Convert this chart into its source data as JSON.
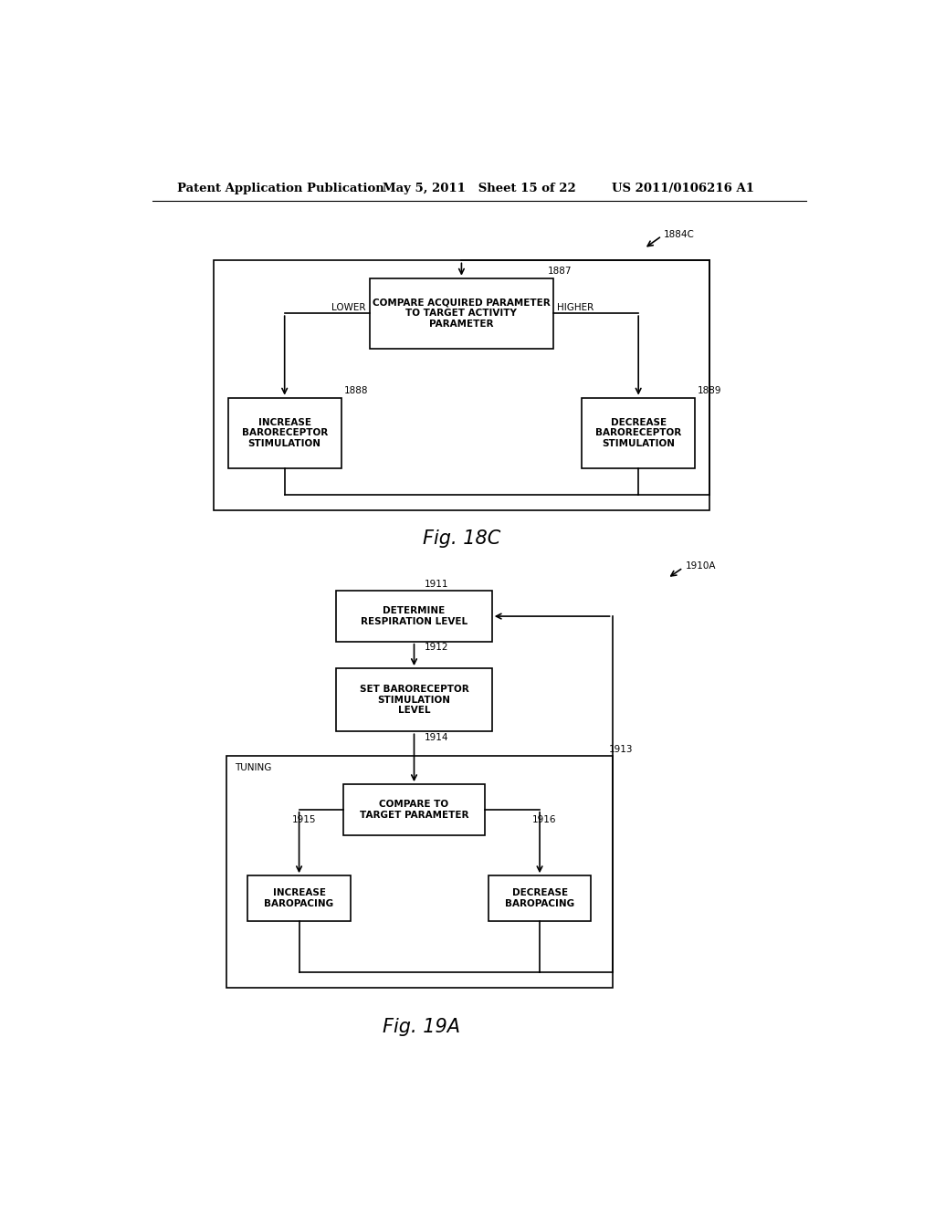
{
  "bg_color": "#ffffff",
  "header_left": "Patent Application Publication",
  "header_mid": "May 5, 2011   Sheet 15 of 22",
  "header_right": "US 2011/0106216 A1",
  "fig18c_label": "Fig. 18C",
  "fig19a_label": "Fig. 19A",
  "ref_1884c": "1884C",
  "ref_1910a": "1910A",
  "diagram1": {
    "box_top": {
      "label": "COMPARE ACQUIRED PARAMETER\nTO TARGET ACTIVITY\nPARAMETER",
      "ref": "1887"
    },
    "box_left": {
      "label": "INCREASE\nBARORECEPTOR\nSTIMULATION",
      "ref": "1888"
    },
    "box_right": {
      "label": "DECREASE\nBARORECEPTOR\nSTIMULATION",
      "ref": "1889"
    },
    "label_lower": "LOWER",
    "label_higher": "HIGHER"
  },
  "diagram2": {
    "box1": {
      "label": "DETERMINE\nRESPIRATION LEVEL",
      "ref": "1911"
    },
    "box2": {
      "label": "SET BARORECEPTOR\nSTIMULATION\nLEVEL",
      "ref": "1912"
    },
    "box_tuning": {
      "label": "TUNING",
      "ref": "1913"
    },
    "box3": {
      "label": "COMPARE TO\nTARGET PARAMETER",
      "ref": "1914"
    },
    "box4": {
      "label": "INCREASE\nBAROPACING",
      "ref": "1915"
    },
    "box5": {
      "label": "DECREASE\nBAROPACING",
      "ref": "1916"
    }
  },
  "lw": 1.2,
  "fontsize_label": 7.5,
  "fontsize_ref": 7.5,
  "fontsize_header": 9.5,
  "fontsize_fig": 15
}
